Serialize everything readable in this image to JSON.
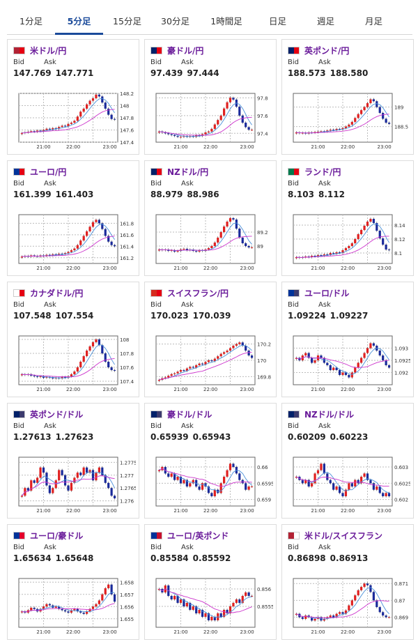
{
  "tabs": [
    {
      "label": "1分足",
      "active": false
    },
    {
      "label": "5分足",
      "active": true
    },
    {
      "label": "15分足",
      "active": false
    },
    {
      "label": "30分足",
      "active": false
    },
    {
      "label": "1時間足",
      "active": false
    },
    {
      "label": "日足",
      "active": false
    },
    {
      "label": "週足",
      "active": false
    },
    {
      "label": "月足",
      "active": false
    }
  ],
  "labels": {
    "bid": "Bid",
    "ask": "Ask"
  },
  "colors": {
    "tab_active": "#1a4a9a",
    "pair_name": "#6a1b9a",
    "candle_up": "#e02020",
    "candle_down": "#1a2a9a",
    "ma_short": "#4a90d9",
    "ma_long": "#cc33cc"
  },
  "cards": [
    {
      "pair": "米ドル/円",
      "flag": "us-jp-flag-icon",
      "bid": "147.769",
      "ask": "147.771",
      "chart_data": {
        "type": "candlestick",
        "x_ticks": [
          "21:00",
          "22:00",
          "23:00"
        ],
        "y_ticks": [
          "148.2",
          "148",
          "147.8",
          "147.6",
          "147.4"
        ],
        "ylim": [
          147.4,
          148.2
        ],
        "trend": [
          147.55,
          147.56,
          147.57,
          147.58,
          147.57,
          147.59,
          147.58,
          147.6,
          147.62,
          147.61,
          147.63,
          147.62,
          147.65,
          147.67,
          147.66,
          147.7,
          147.72,
          147.75,
          147.82,
          147.9,
          147.95,
          148.02,
          148.08,
          148.12,
          148.18,
          148.15,
          148.05,
          147.95,
          147.85,
          147.78,
          147.77
        ]
      }
    },
    {
      "pair": "豪ドル/円",
      "flag": "au-jp-flag-icon",
      "bid": "97.439",
      "ask": "97.444",
      "chart_data": {
        "type": "candlestick",
        "x_ticks": [
          "21:00",
          "22:00",
          "23:00"
        ],
        "y_ticks": [
          "97.8",
          "97.6",
          "97.4"
        ],
        "ylim": [
          97.3,
          97.85
        ],
        "trend": [
          97.42,
          97.41,
          97.4,
          97.39,
          97.38,
          97.37,
          97.36,
          97.36,
          97.37,
          97.36,
          97.37,
          97.36,
          97.38,
          97.37,
          97.39,
          97.41,
          97.42,
          97.45,
          97.5,
          97.55,
          97.6,
          97.68,
          97.75,
          97.8,
          97.78,
          97.7,
          97.6,
          97.52,
          97.47,
          97.44,
          97.44
        ]
      }
    },
    {
      "pair": "英ポンド/円",
      "flag": "gb-jp-flag-icon",
      "bid": "188.573",
      "ask": "188.580",
      "chart_data": {
        "type": "candlestick",
        "x_ticks": [
          "21:00",
          "22:00",
          "23:00"
        ],
        "y_ticks": [
          "189",
          "188.5"
        ],
        "ylim": [
          188.1,
          189.35
        ],
        "trend": [
          188.35,
          188.33,
          188.34,
          188.32,
          188.35,
          188.34,
          188.36,
          188.37,
          188.38,
          188.37,
          188.4,
          188.42,
          188.41,
          188.44,
          188.43,
          188.46,
          188.5,
          188.55,
          188.62,
          188.72,
          188.82,
          188.92,
          189.0,
          189.1,
          189.2,
          189.15,
          189.0,
          188.85,
          188.7,
          188.6,
          188.57
        ]
      }
    },
    {
      "pair": "ユーロ/円",
      "flag": "eu-jp-flag-icon",
      "bid": "161.399",
      "ask": "161.403",
      "chart_data": {
        "type": "candlestick",
        "x_ticks": [
          "21:00",
          "22:00",
          "23:00"
        ],
        "y_ticks": [
          "161.8",
          "161.6",
          "161.4",
          "161.2"
        ],
        "ylim": [
          161.1,
          161.95
        ],
        "trend": [
          161.22,
          161.23,
          161.22,
          161.24,
          161.23,
          161.22,
          161.24,
          161.23,
          161.25,
          161.24,
          161.26,
          161.25,
          161.27,
          161.26,
          161.28,
          161.3,
          161.33,
          161.36,
          161.42,
          161.5,
          161.58,
          161.66,
          161.74,
          161.82,
          161.86,
          161.8,
          161.7,
          161.58,
          161.48,
          161.42,
          161.4
        ]
      }
    },
    {
      "pair": "NZドル/円",
      "flag": "nz-jp-flag-icon",
      "bid": "88.979",
      "ask": "88.986",
      "chart_data": {
        "type": "candlestick",
        "x_ticks": [
          "21:00",
          "22:00",
          "23:00"
        ],
        "y_ticks": [
          "89.2",
          "89"
        ],
        "ylim": [
          88.75,
          89.45
        ],
        "trend": [
          88.95,
          88.94,
          88.95,
          88.93,
          88.94,
          88.92,
          88.93,
          88.95,
          88.96,
          88.94,
          88.95,
          88.93,
          88.92,
          88.94,
          88.93,
          88.95,
          88.97,
          89.0,
          89.05,
          89.12,
          89.2,
          89.28,
          89.35,
          89.4,
          89.38,
          89.25,
          89.12,
          89.04,
          89.0,
          88.98,
          88.98
        ]
      }
    },
    {
      "pair": "ランド/円",
      "flag": "za-jp-flag-icon",
      "bid": "8.103",
      "ask": "8.112",
      "chart_data": {
        "type": "candlestick",
        "x_ticks": [
          "21:00",
          "22:00",
          "23:00"
        ],
        "y_ticks": [
          "8.14",
          "8.12",
          "8.1"
        ],
        "ylim": [
          8.085,
          8.155
        ],
        "trend": [
          8.094,
          8.093,
          8.094,
          8.095,
          8.094,
          8.096,
          8.095,
          8.097,
          8.096,
          8.098,
          8.097,
          8.1,
          8.099,
          8.101,
          8.1,
          8.104,
          8.107,
          8.11,
          8.114,
          8.12,
          8.127,
          8.133,
          8.139,
          8.145,
          8.149,
          8.143,
          8.132,
          8.121,
          8.112,
          8.105,
          8.104
        ]
      }
    },
    {
      "pair": "カナダドル/円",
      "flag": "ca-jp-flag-icon",
      "bid": "107.548",
      "ask": "107.554",
      "chart_data": {
        "type": "candlestick",
        "x_ticks": [
          "21:00",
          "22:00",
          "23:00"
        ],
        "y_ticks": [
          "108",
          "107.8",
          "107.6",
          "107.4"
        ],
        "ylim": [
          107.35,
          108.05
        ],
        "trend": [
          107.5,
          107.49,
          107.5,
          107.48,
          107.47,
          107.46,
          107.47,
          107.45,
          107.46,
          107.45,
          107.44,
          107.45,
          107.44,
          107.46,
          107.45,
          107.47,
          107.5,
          107.54,
          107.6,
          107.68,
          107.76,
          107.84,
          107.9,
          107.96,
          108.0,
          107.92,
          107.8,
          107.68,
          107.6,
          107.56,
          107.55
        ]
      }
    },
    {
      "pair": "スイスフラン/円",
      "flag": "ch-jp-flag-icon",
      "bid": "170.023",
      "ask": "170.039",
      "chart_data": {
        "type": "candlestick",
        "x_ticks": [
          "21:00",
          "22:00",
          "23:00"
        ],
        "y_ticks": [
          "170.2",
          "170",
          "169.8"
        ],
        "ylim": [
          169.7,
          170.3
        ],
        "trend": [
          169.76,
          169.78,
          169.79,
          169.81,
          169.83,
          169.84,
          169.86,
          169.88,
          169.87,
          169.9,
          169.92,
          169.91,
          169.94,
          169.96,
          169.95,
          169.98,
          170.0,
          169.99,
          170.02,
          170.05,
          170.08,
          170.1,
          170.12,
          170.15,
          170.18,
          170.2,
          170.22,
          170.18,
          170.12,
          170.06,
          170.03
        ]
      }
    },
    {
      "pair": "ユーロ/ドル",
      "flag": "eu-us-flag-icon",
      "bid": "1.09224",
      "ask": "1.09227",
      "chart_data": {
        "type": "candlestick",
        "x_ticks": [
          "21:00",
          "22:00",
          "23:00"
        ],
        "y_ticks": [
          "1.093",
          "1.0925",
          "1.092"
        ],
        "ylim": [
          1.0915,
          1.0935
        ],
        "trend": [
          1.0926,
          1.0925,
          1.0927,
          1.0928,
          1.0926,
          1.0924,
          1.0925,
          1.0927,
          1.0926,
          1.0924,
          1.0923,
          1.0921,
          1.0922,
          1.0921,
          1.0919,
          1.092,
          1.0919,
          1.0918,
          1.092,
          1.0922,
          1.0924,
          1.0926,
          1.0928,
          1.093,
          1.0932,
          1.0931,
          1.0929,
          1.0927,
          1.0925,
          1.0923,
          1.0922
        ]
      }
    },
    {
      "pair": "英ポンド/ドル",
      "flag": "gb-us-flag-icon",
      "bid": "1.27613",
      "ask": "1.27623",
      "chart_data": {
        "type": "candlestick",
        "x_ticks": [
          "21:00",
          "22:00",
          "23:00"
        ],
        "y_ticks": [
          "1.2775",
          "1.277",
          "1.2765",
          "1.276"
        ],
        "ylim": [
          1.2758,
          1.2777
        ],
        "trend": [
          1.2762,
          1.2765,
          1.2764,
          1.2768,
          1.2767,
          1.2769,
          1.2773,
          1.2771,
          1.2766,
          1.2763,
          1.2765,
          1.2768,
          1.2772,
          1.277,
          1.2766,
          1.2764,
          1.2767,
          1.2769,
          1.2771,
          1.277,
          1.2773,
          1.2771,
          1.2772,
          1.2768,
          1.2771,
          1.2773,
          1.277,
          1.2767,
          1.2765,
          1.2762,
          1.2761
        ]
      }
    },
    {
      "pair": "豪ドル/ドル",
      "flag": "au-us-flag-icon",
      "bid": "0.65939",
      "ask": "0.65943",
      "chart_data": {
        "type": "candlestick",
        "x_ticks": [
          "21:00",
          "22:00",
          "23:00"
        ],
        "y_ticks": [
          "0.66",
          "0.6595",
          "0.659"
        ],
        "ylim": [
          0.6588,
          0.6603
        ],
        "trend": [
          0.6599,
          0.66,
          0.6598,
          0.6597,
          0.6598,
          0.6596,
          0.6597,
          0.6595,
          0.6596,
          0.6594,
          0.6595,
          0.6596,
          0.6594,
          0.6593,
          0.6595,
          0.6594,
          0.6592,
          0.6591,
          0.6593,
          0.6592,
          0.6595,
          0.6597,
          0.6599,
          0.6601,
          0.66,
          0.6598,
          0.6596,
          0.6595,
          0.6593,
          0.6594,
          0.6594
        ]
      }
    },
    {
      "pair": "NZドル/ドル",
      "flag": "nz-us-flag-icon",
      "bid": "0.60209",
      "ask": "0.60223",
      "chart_data": {
        "type": "candlestick",
        "x_ticks": [
          "21:00",
          "22:00",
          "23:00"
        ],
        "y_ticks": [
          "0.603",
          "0.6025",
          "0.602"
        ],
        "ylim": [
          0.6018,
          0.6033
        ],
        "trend": [
          0.6027,
          0.6026,
          0.6025,
          0.6026,
          0.6024,
          0.6025,
          0.6028,
          0.6029,
          0.6031,
          0.6028,
          0.6026,
          0.6025,
          0.6023,
          0.6024,
          0.6022,
          0.6021,
          0.6023,
          0.6025,
          0.6024,
          0.6026,
          0.6025,
          0.6027,
          0.6028,
          0.6026,
          0.6025,
          0.6023,
          0.6024,
          0.6022,
          0.6021,
          0.6022,
          0.6021
        ]
      }
    },
    {
      "pair": "ユーロ/豪ドル",
      "flag": "eu-au-flag-icon",
      "bid": "1.65634",
      "ask": "1.65648",
      "chart_data": {
        "type": "candlestick",
        "x_ticks": [
          "21:00",
          "22:00",
          "23:00"
        ],
        "y_ticks": [
          "1.658",
          "1.657",
          "1.656",
          "1.655"
        ],
        "ylim": [
          1.6543,
          1.6583
        ],
        "trend": [
          1.6556,
          1.6555,
          1.6557,
          1.6559,
          1.6558,
          1.6556,
          1.6558,
          1.656,
          1.6562,
          1.6561,
          1.6559,
          1.656,
          1.6558,
          1.6557,
          1.6556,
          1.6555,
          1.6557,
          1.6558,
          1.6556,
          1.6555,
          1.6554,
          1.6556,
          1.6558,
          1.656,
          1.6562,
          1.6565,
          1.657,
          1.6575,
          1.6578,
          1.657,
          1.6564
        ]
      }
    },
    {
      "pair": "ユーロ/英ポンド",
      "flag": "eu-gb-flag-icon",
      "bid": "0.85584",
      "ask": "0.85592",
      "chart_data": {
        "type": "candlestick",
        "x_ticks": [
          "21:00",
          "22:00",
          "23:00"
        ],
        "y_ticks": [
          "0.856",
          "0.8555"
        ],
        "ylim": [
          0.8549,
          0.8563
        ],
        "trend": [
          0.856,
          0.8559,
          0.8561,
          0.8558,
          0.8557,
          0.8558,
          0.8556,
          0.8557,
          0.8555,
          0.8556,
          0.8554,
          0.8555,
          0.8553,
          0.8554,
          0.8552,
          0.8553,
          0.8551,
          0.8552,
          0.8551,
          0.8553,
          0.8552,
          0.8554,
          0.8553,
          0.8555,
          0.8556,
          0.8557,
          0.8556,
          0.8558,
          0.8559,
          0.8558,
          0.8558
        ]
      }
    },
    {
      "pair": "米ドル/スイスフラン",
      "flag": "us-ch-flag-icon",
      "bid": "0.86898",
      "ask": "0.86913",
      "chart_data": {
        "type": "candlestick",
        "x_ticks": [
          "21:00",
          "22:00",
          "23:00"
        ],
        "y_ticks": [
          "0.871",
          "0.87",
          "0.869"
        ],
        "ylim": [
          0.8684,
          0.8713
        ],
        "trend": [
          0.8692,
          0.869,
          0.8689,
          0.8691,
          0.869,
          0.8688,
          0.8689,
          0.869,
          0.8688,
          0.8689,
          0.869,
          0.8691,
          0.869,
          0.8692,
          0.8693,
          0.8692,
          0.8694,
          0.8697,
          0.87,
          0.8703,
          0.8706,
          0.8708,
          0.871,
          0.8709,
          0.8705,
          0.87,
          0.8696,
          0.8693,
          0.8691,
          0.869,
          0.869
        ]
      }
    }
  ]
}
